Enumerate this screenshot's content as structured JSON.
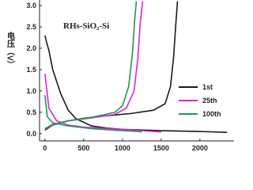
{
  "chart_data": {
    "type": "line",
    "title": "RHs-SiO₂-Si",
    "y_label": "电压（V）",
    "xlim": [
      -70,
      2440
    ],
    "xticks": [
      0,
      500,
      1000,
      1500,
      2000
    ],
    "ylim": [
      -0.17,
      3.13
    ],
    "yticks": [
      0.0,
      0.5,
      1.0,
      1.5,
      2.0,
      2.5,
      3.0
    ],
    "legend": "lower right",
    "series": [
      {
        "name": "1st",
        "color": "#1a1a1a",
        "curves": [
          {
            "x": [
              0,
              20,
              50,
              100,
              200,
              300,
              400,
              600,
              800,
              1000,
              1200,
              1500,
              2000,
              2350
            ],
            "values": [
              2.3,
              2.15,
              1.95,
              1.5,
              0.95,
              0.55,
              0.35,
              0.18,
              0.13,
              0.1,
              0.09,
              0.07,
              0.05,
              0.03
            ]
          },
          {
            "x": [
              0,
              100,
              300,
              500,
              800,
              1100,
              1400,
              1550,
              1620,
              1660,
              1690,
              1710
            ],
            "values": [
              0.08,
              0.2,
              0.3,
              0.36,
              0.42,
              0.47,
              0.55,
              0.7,
              1.1,
              1.8,
              2.6,
              3.1
            ]
          }
        ]
      },
      {
        "name": "25th",
        "color": "#e020e0",
        "curves": [
          {
            "x": [
              0,
              50,
              150,
              300,
              500,
              800,
              1100,
              1400,
              1500
            ],
            "values": [
              1.4,
              0.6,
              0.3,
              0.2,
              0.15,
              0.12,
              0.09,
              0.05,
              0.04
            ]
          },
          {
            "x": [
              0,
              100,
              300,
              600,
              900,
              1050,
              1150,
              1200,
              1230,
              1260
            ],
            "values": [
              0.1,
              0.2,
              0.3,
              0.37,
              0.45,
              0.6,
              1.0,
              1.8,
              2.6,
              3.1
            ]
          }
        ]
      },
      {
        "name": "100th",
        "color": "#1a9a50",
        "curves": [
          {
            "x": [
              0,
              30,
              100,
              300,
              600,
              900,
              1200,
              1250
            ],
            "values": [
              0.9,
              0.4,
              0.25,
              0.18,
              0.12,
              0.08,
              0.05,
              0.04
            ]
          },
          {
            "x": [
              0,
              100,
              300,
              600,
              900,
              1000,
              1080,
              1130,
              1160,
              1180
            ],
            "values": [
              0.12,
              0.22,
              0.3,
              0.38,
              0.5,
              0.65,
              1.1,
              1.9,
              2.7,
              3.1
            ]
          }
        ]
      }
    ]
  }
}
